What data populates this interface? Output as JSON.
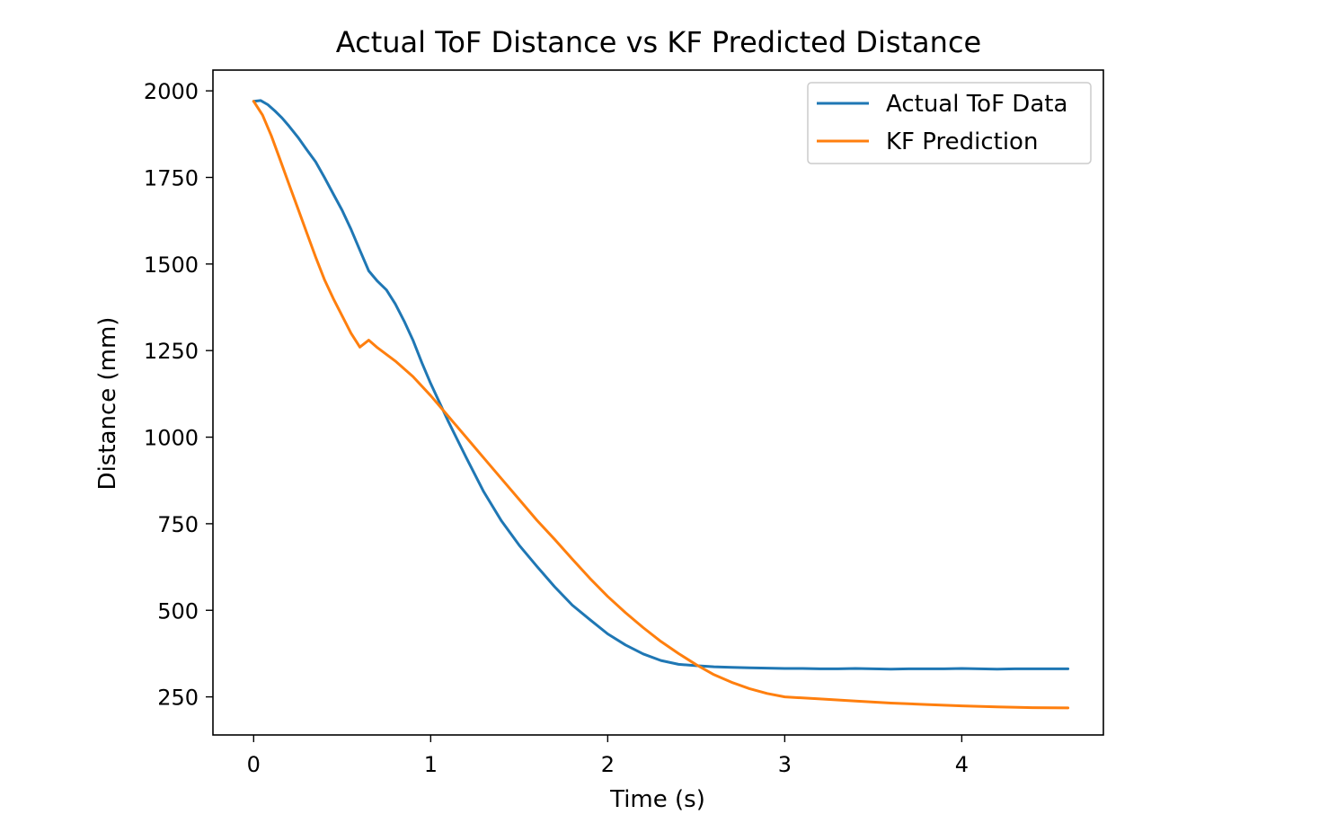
{
  "chart_data": {
    "type": "line",
    "title": "Actual ToF Distance vs KF Predicted Distance",
    "xlabel": "Time (s)",
    "ylabel": "Distance (mm)",
    "xlim": [
      -0.23,
      4.8
    ],
    "ylim": [
      140,
      2060
    ],
    "x_ticks": [
      0,
      1,
      2,
      3,
      4
    ],
    "x_tick_labels": [
      "0",
      "1",
      "2",
      "3",
      "4"
    ],
    "y_ticks": [
      250,
      500,
      750,
      1000,
      1250,
      1500,
      1750,
      2000
    ],
    "y_tick_labels": [
      "250",
      "500",
      "750",
      "1000",
      "1250",
      "1500",
      "1750",
      "2000"
    ],
    "grid": false,
    "legend_position": "upper right",
    "series": [
      {
        "name": "Actual ToF Data",
        "color": "#1f77b4",
        "x": [
          0,
          0.04,
          0.08,
          0.12,
          0.16,
          0.2,
          0.25,
          0.3,
          0.35,
          0.4,
          0.45,
          0.5,
          0.55,
          0.6,
          0.65,
          0.7,
          0.75,
          0.8,
          0.85,
          0.9,
          0.95,
          1.0,
          1.1,
          1.2,
          1.3,
          1.4,
          1.5,
          1.6,
          1.7,
          1.8,
          1.9,
          2.0,
          2.1,
          2.2,
          2.3,
          2.4,
          2.5,
          2.6,
          2.7,
          2.8,
          2.9,
          3.0,
          3.1,
          3.2,
          3.3,
          3.4,
          3.5,
          3.6,
          3.7,
          3.8,
          3.9,
          4.0,
          4.1,
          4.2,
          4.3,
          4.4,
          4.5,
          4.6
        ],
        "y": [
          1970,
          1972,
          1960,
          1942,
          1922,
          1898,
          1866,
          1830,
          1795,
          1750,
          1702,
          1655,
          1600,
          1540,
          1480,
          1450,
          1425,
          1385,
          1335,
          1280,
          1215,
          1155,
          1045,
          942,
          842,
          758,
          688,
          627,
          568,
          515,
          473,
          432,
          400,
          374,
          355,
          344,
          340,
          337,
          335,
          334,
          333,
          332,
          332,
          331,
          331,
          332,
          331,
          330,
          331,
          331,
          331,
          332,
          331,
          330,
          331,
          331,
          331,
          331
        ]
      },
      {
        "name": "KF Prediction",
        "color": "#ff7f0e",
        "x": [
          0,
          0.05,
          0.1,
          0.15,
          0.2,
          0.25,
          0.3,
          0.35,
          0.4,
          0.45,
          0.5,
          0.55,
          0.6,
          0.65,
          0.7,
          0.8,
          0.9,
          1.0,
          1.1,
          1.2,
          1.3,
          1.4,
          1.5,
          1.6,
          1.7,
          1.8,
          1.9,
          2.0,
          2.1,
          2.2,
          2.3,
          2.4,
          2.5,
          2.6,
          2.7,
          2.8,
          2.9,
          3.0,
          3.2,
          3.4,
          3.6,
          3.8,
          4.0,
          4.2,
          4.4,
          4.6
        ],
        "y": [
          1970,
          1930,
          1870,
          1800,
          1730,
          1660,
          1590,
          1520,
          1455,
          1400,
          1350,
          1300,
          1260,
          1280,
          1258,
          1220,
          1175,
          1120,
          1060,
          1000,
          940,
          880,
          820,
          760,
          705,
          648,
          592,
          540,
          493,
          450,
          410,
          375,
          343,
          314,
          292,
          274,
          260,
          250,
          244,
          238,
          232,
          228,
          224,
          221,
          219,
          218
        ]
      }
    ]
  }
}
